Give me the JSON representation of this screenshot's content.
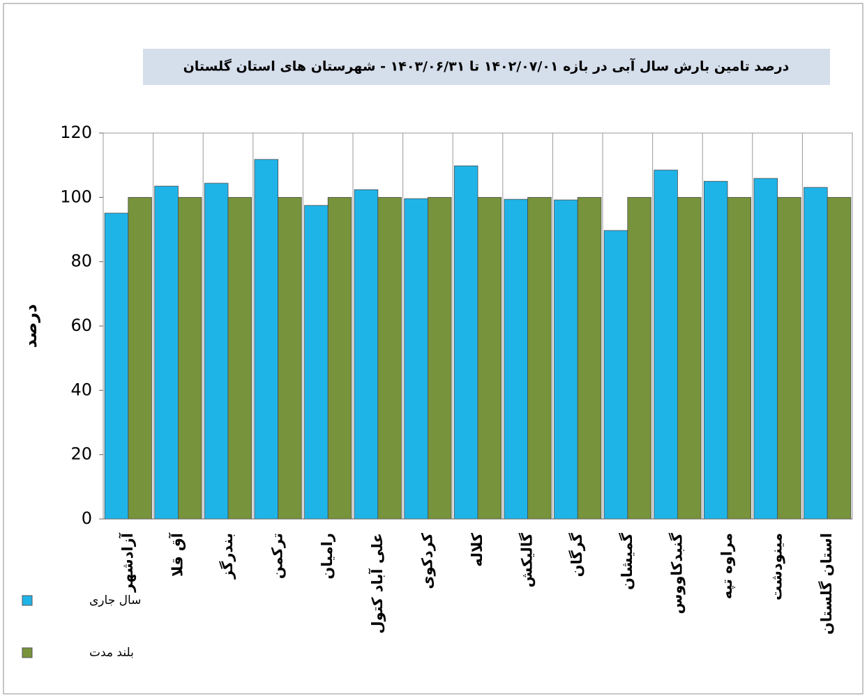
{
  "chart_data": {
    "type": "bar",
    "title": "درصد تامین بارش سال آبی در بازه ۱۴۰۲/۰۷/۰۱ تا ۱۴۰۳/۰۶/۳۱ - شهرستان های استان گلستان",
    "y_label": "درصد",
    "categories": [
      "آزادشهر",
      "آق قلا",
      "بندرگز",
      "ترکمن",
      "رامیان",
      "علی آباد کتول",
      "کردکوی",
      "کلاله",
      "گالیکش",
      "گرگان",
      "گمیشان",
      "گنبدکاووس",
      "مراوه تپه",
      "مینودشت",
      "استان گلستان"
    ],
    "series": [
      {
        "name": "سال جاری",
        "color": "#1fb4e8",
        "values": [
          95.1,
          103.5,
          104.4,
          111.8,
          97.5,
          102.4,
          99.6,
          109.8,
          99.4,
          99.2,
          89.7,
          108.5,
          105,
          105.9,
          103.1
        ]
      },
      {
        "name": "بلند مدت",
        "color": "#77933c",
        "values": [
          100,
          100,
          100,
          100,
          100,
          100,
          100,
          100,
          100,
          100,
          100,
          100,
          100,
          100,
          100
        ]
      }
    ],
    "ylim": [
      0,
      120
    ],
    "yticks": [
      0,
      20,
      40,
      60,
      80,
      100,
      120
    ],
    "grid": false,
    "legend": "bottom-left"
  }
}
